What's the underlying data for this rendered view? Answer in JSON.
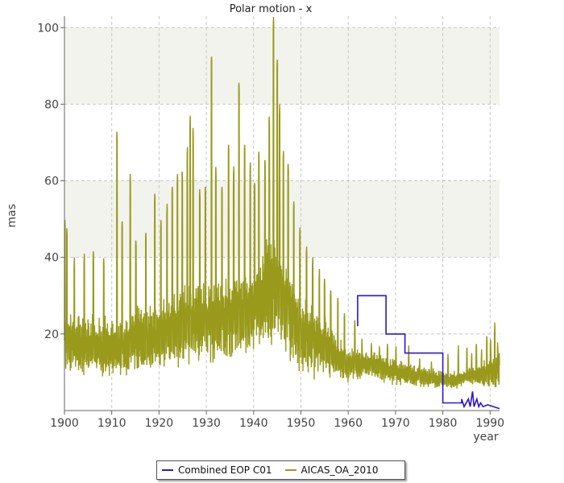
{
  "chart_data": {
    "type": "line",
    "title": "Polar motion - x",
    "xlabel": "year",
    "ylabel": "mas",
    "xlim": [
      1900,
      1992
    ],
    "ylim": [
      0,
      103
    ],
    "xticks": [
      1900,
      1910,
      1920,
      1930,
      1940,
      1950,
      1960,
      1970,
      1980,
      1990
    ],
    "yticks": [
      20,
      40,
      60,
      80,
      100
    ],
    "bands": [
      [
        40,
        60
      ],
      [
        80,
        100
      ]
    ],
    "grid": true,
    "legend_position": "bottom",
    "series": [
      {
        "name": "AICAS_OA_2010",
        "color": "#999a1c",
        "base": [
          [
            1900,
            18
          ],
          [
            1905,
            17
          ],
          [
            1910,
            16
          ],
          [
            1915,
            18
          ],
          [
            1920,
            20
          ],
          [
            1925,
            22
          ],
          [
            1930,
            24
          ],
          [
            1935,
            24
          ],
          [
            1940,
            26
          ],
          [
            1944,
            32
          ],
          [
            1947,
            27
          ],
          [
            1950,
            20
          ],
          [
            1955,
            16
          ],
          [
            1960,
            12
          ],
          [
            1965,
            12
          ],
          [
            1970,
            10
          ],
          [
            1975,
            9
          ],
          [
            1980,
            8
          ],
          [
            1983,
            8
          ],
          [
            1985,
            9
          ],
          [
            1988,
            9
          ],
          [
            1990,
            10
          ],
          [
            1992,
            11
          ]
        ],
        "amplitude": [
          [
            1900,
            7
          ],
          [
            1910,
            7
          ],
          [
            1920,
            8
          ],
          [
            1930,
            10
          ],
          [
            1940,
            10
          ],
          [
            1944,
            14
          ],
          [
            1950,
            9
          ],
          [
            1955,
            7
          ],
          [
            1960,
            4
          ],
          [
            1970,
            3
          ],
          [
            1980,
            2
          ],
          [
            1985,
            2
          ],
          [
            1990,
            4
          ],
          [
            1992,
            5
          ]
        ],
        "peaks": [
          [
            1900.1,
            50
          ],
          [
            1900.5,
            48
          ],
          [
            1902.1,
            40
          ],
          [
            1904.2,
            41
          ],
          [
            1906.1,
            42
          ],
          [
            1908.3,
            40
          ],
          [
            1911.1,
            73
          ],
          [
            1912.2,
            50
          ],
          [
            1913.9,
            62
          ],
          [
            1915.1,
            45
          ],
          [
            1917.2,
            47
          ],
          [
            1919.1,
            57
          ],
          [
            1920.4,
            50
          ],
          [
            1921.7,
            54
          ],
          [
            1922.8,
            59
          ],
          [
            1923.9,
            62
          ],
          [
            1924.9,
            63
          ],
          [
            1926.0,
            69
          ],
          [
            1926.6,
            77
          ],
          [
            1927.2,
            74
          ],
          [
            1928.6,
            58
          ],
          [
            1929.8,
            59
          ],
          [
            1931.1,
            93
          ],
          [
            1932.0,
            64
          ],
          [
            1933.3,
            59
          ],
          [
            1934.7,
            70
          ],
          [
            1935.8,
            64
          ],
          [
            1936.9,
            86
          ],
          [
            1938.1,
            70
          ],
          [
            1939.3,
            65
          ],
          [
            1940.2,
            60
          ],
          [
            1941.1,
            68
          ],
          [
            1942.4,
            66
          ],
          [
            1943.3,
            77
          ],
          [
            1944.2,
            103
          ],
          [
            1945.0,
            92
          ],
          [
            1945.5,
            80
          ],
          [
            1946.3,
            68
          ],
          [
            1947.3,
            65
          ],
          [
            1948.5,
            55
          ],
          [
            1949.8,
            48
          ],
          [
            1951.2,
            43
          ],
          [
            1952.5,
            40
          ],
          [
            1953.9,
            37
          ],
          [
            1955.0,
            35
          ],
          [
            1956.3,
            32
          ],
          [
            1957.8,
            30
          ],
          [
            1959.2,
            26
          ],
          [
            1961.4,
            24
          ],
          [
            1962.9,
            19
          ],
          [
            1964.9,
            18
          ],
          [
            1966.6,
            17
          ],
          [
            1968.3,
            18
          ],
          [
            1970.1,
            17
          ],
          [
            1972.8,
            17
          ],
          [
            1975.1,
            14
          ],
          [
            1977.6,
            13
          ],
          [
            1981.1,
            15
          ],
          [
            1983.3,
            17
          ],
          [
            1985.1,
            17
          ],
          [
            1986.1,
            15
          ],
          [
            1987.1,
            18
          ],
          [
            1988.2,
            16
          ],
          [
            1989.3,
            20
          ],
          [
            1990.1,
            19
          ],
          [
            1991.0,
            23
          ],
          [
            1991.6,
            18
          ]
        ]
      },
      {
        "name": "Combined EOP C01",
        "color": "#2a16d6",
        "points": [
          [
            1962,
            22
          ],
          [
            1962,
            30
          ],
          [
            1968,
            30
          ],
          [
            1968,
            20
          ],
          [
            1972,
            20
          ],
          [
            1972,
            15
          ],
          [
            1980,
            15
          ],
          [
            1980,
            2
          ],
          [
            1984,
            2
          ],
          [
            1984,
            3
          ],
          [
            1984.5,
            1
          ],
          [
            1985.4,
            3
          ],
          [
            1985.8,
            1
          ],
          [
            1986.3,
            5
          ],
          [
            1986.6,
            1
          ],
          [
            1987.2,
            3
          ],
          [
            1987.6,
            1
          ],
          [
            1988.0,
            2
          ],
          [
            1988.5,
            1
          ],
          [
            1989.5,
            1.5
          ],
          [
            1992,
            0.5
          ]
        ]
      }
    ]
  },
  "legend": {
    "items": [
      {
        "label": "Combined EOP C01",
        "color": "#2a16d6"
      },
      {
        "label": "AICAS_OA_2010",
        "color": "#999a1c"
      }
    ]
  }
}
